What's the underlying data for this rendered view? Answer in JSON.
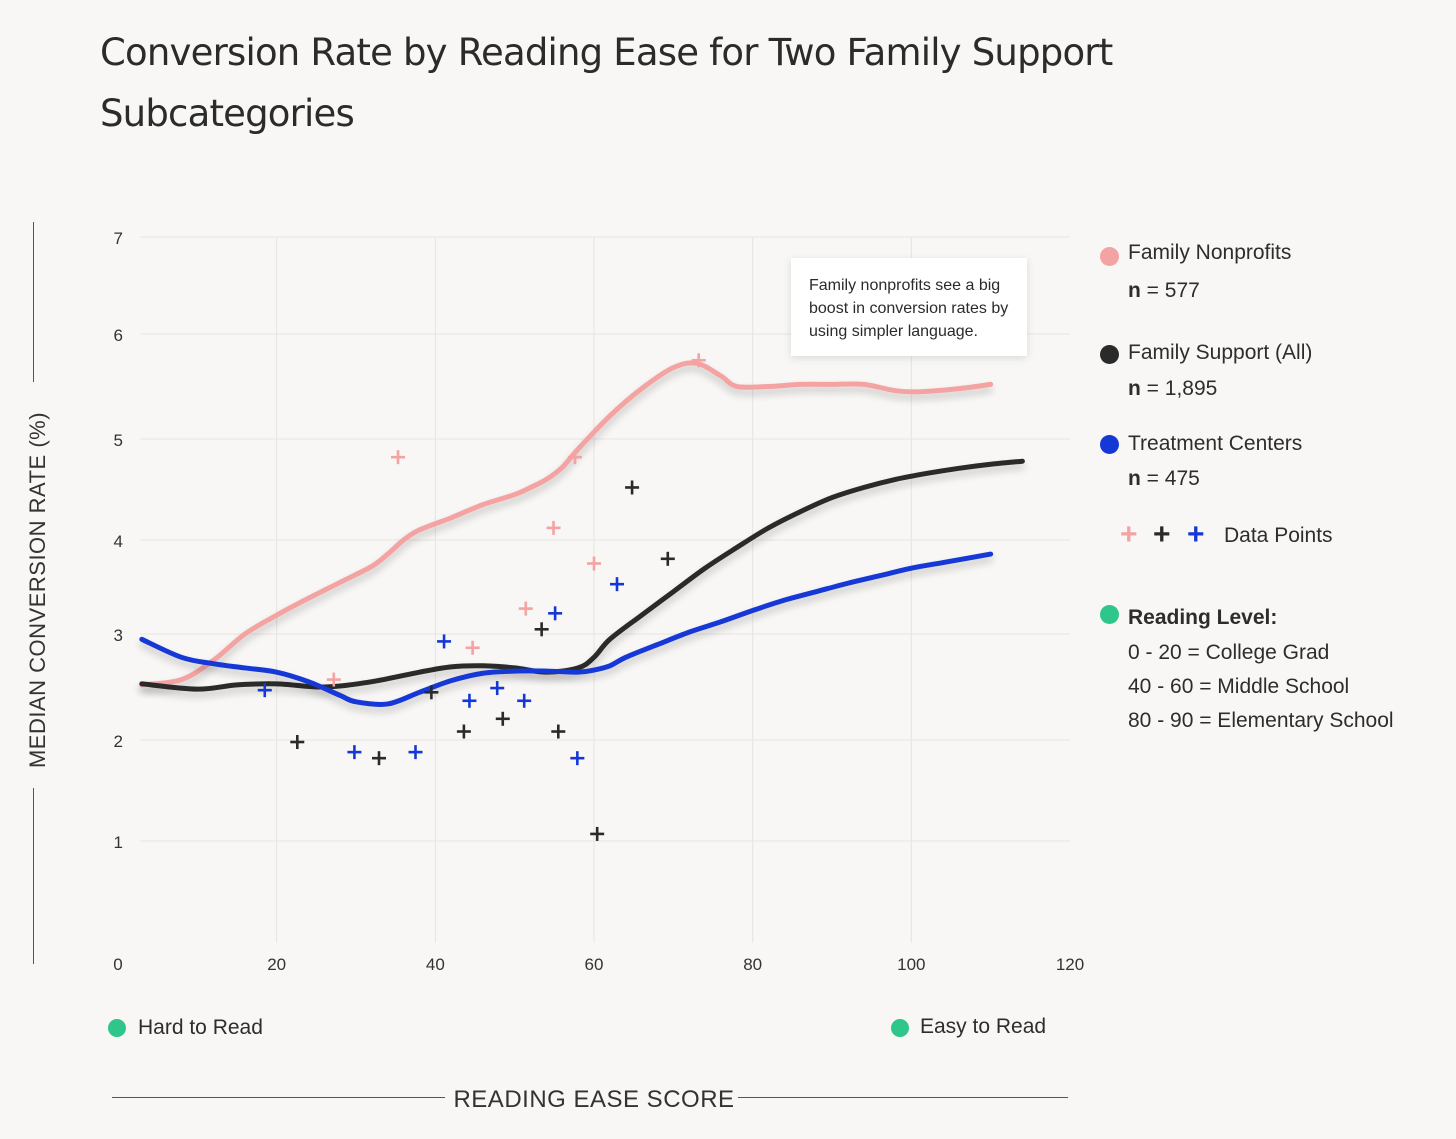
{
  "title": "Conversion Rate by Reading Ease for Two Family Support Subcategories",
  "colors": {
    "family_nonprofits": "#f4a3a3",
    "family_support_all": "#2a2a2a",
    "treatment_centers": "#1437d6",
    "reading_level": "#2ec68a",
    "grid": "#e6e4e0",
    "background": "#f8f7f5"
  },
  "callout": "Family nonprofits see a big boost in conversion rates by using simpler language.",
  "legend": {
    "items": [
      {
        "label": "Family Nonprofits",
        "n_prefix": "n",
        "n_value": "= 577"
      },
      {
        "label": "Family Support (All)",
        "n_prefix": "n",
        "n_value": "= 1,895"
      },
      {
        "label": "Treatment Centers",
        "n_prefix": "n",
        "n_value": "= 475"
      }
    ],
    "data_points_label": "Data Points",
    "plus_symbol": "+",
    "reading_level": {
      "title": "Reading Level:",
      "lines": [
        "0 - 20 = College Grad",
        "40 - 60 = Middle School",
        "80 - 90 = Elementary School"
      ]
    }
  },
  "bottom": {
    "left_label": "Hard to Read",
    "right_label": "Easy to Read"
  },
  "chart_data": {
    "type": "line",
    "xlabel": "READING EASE SCORE",
    "ylabel": "MEDIAN CONVERSION RATE (%)",
    "xlim": [
      0,
      120
    ],
    "ylim": [
      0,
      7
    ],
    "x_ticks": [
      0,
      20,
      40,
      60,
      80,
      100,
      120
    ],
    "y_ticks": [
      1,
      2,
      3,
      4,
      5,
      6,
      7
    ],
    "grid": true,
    "legend_position": "right",
    "series": [
      {
        "name": "Family Nonprofits",
        "color_key": "family_nonprofits",
        "line": [
          [
            3,
            2.52
          ],
          [
            8,
            2.57
          ],
          [
            12,
            2.75
          ],
          [
            16,
            3.0
          ],
          [
            20,
            3.2
          ],
          [
            24,
            3.38
          ],
          [
            28,
            3.55
          ],
          [
            32,
            3.72
          ],
          [
            34,
            3.85
          ],
          [
            36,
            4.0
          ],
          [
            38,
            4.1
          ],
          [
            42,
            4.22
          ],
          [
            46,
            4.35
          ],
          [
            50,
            4.45
          ],
          [
            52,
            4.52
          ],
          [
            54,
            4.6
          ],
          [
            56,
            4.72
          ],
          [
            58,
            4.9
          ],
          [
            62,
            5.22
          ],
          [
            66,
            5.48
          ],
          [
            70,
            5.68
          ],
          [
            73,
            5.72
          ],
          [
            76,
            5.6
          ],
          [
            78,
            5.5
          ],
          [
            82,
            5.5
          ],
          [
            86,
            5.52
          ],
          [
            90,
            5.52
          ],
          [
            94,
            5.52
          ],
          [
            98,
            5.46
          ],
          [
            101,
            5.45
          ],
          [
            106,
            5.48
          ],
          [
            110,
            5.52
          ]
        ],
        "points": [
          [
            35.3,
            4.82
          ],
          [
            54.9,
            4.12
          ],
          [
            57.6,
            4.82
          ],
          [
            60.0,
            3.75
          ],
          [
            51.4,
            3.27
          ],
          [
            27.2,
            2.57
          ],
          [
            44.7,
            2.87
          ],
          [
            73.2,
            5.75
          ]
        ]
      },
      {
        "name": "Family Support (All)",
        "color_key": "family_support_all",
        "line": [
          [
            3,
            2.53
          ],
          [
            10,
            2.48
          ],
          [
            15,
            2.52
          ],
          [
            20,
            2.53
          ],
          [
            26,
            2.5
          ],
          [
            32,
            2.55
          ],
          [
            38,
            2.64
          ],
          [
            42,
            2.69
          ],
          [
            46,
            2.7
          ],
          [
            50,
            2.68
          ],
          [
            54,
            2.64
          ],
          [
            58,
            2.68
          ],
          [
            60,
            2.78
          ],
          [
            62,
            2.95
          ],
          [
            66,
            3.2
          ],
          [
            70,
            3.45
          ],
          [
            74,
            3.7
          ],
          [
            78,
            3.92
          ],
          [
            82,
            4.12
          ],
          [
            86,
            4.28
          ],
          [
            90,
            4.42
          ],
          [
            94,
            4.52
          ],
          [
            98,
            4.6
          ],
          [
            102,
            4.66
          ],
          [
            106,
            4.71
          ],
          [
            110,
            4.75
          ],
          [
            114,
            4.78
          ]
        ],
        "points": [
          [
            64.8,
            4.52
          ],
          [
            69.3,
            3.8
          ],
          [
            53.4,
            3.05
          ],
          [
            39.5,
            2.45
          ],
          [
            48.5,
            2.2
          ],
          [
            43.6,
            2.08
          ],
          [
            55.5,
            2.08
          ],
          [
            22.6,
            1.98
          ],
          [
            32.9,
            1.82
          ],
          [
            60.4,
            1.07
          ]
        ]
      },
      {
        "name": "Treatment Centers",
        "color_key": "treatment_centers",
        "line": [
          [
            3,
            2.95
          ],
          [
            8,
            2.78
          ],
          [
            12,
            2.72
          ],
          [
            16,
            2.68
          ],
          [
            20,
            2.64
          ],
          [
            24,
            2.55
          ],
          [
            28,
            2.42
          ],
          [
            30,
            2.36
          ],
          [
            34,
            2.34
          ],
          [
            38,
            2.45
          ],
          [
            42,
            2.56
          ],
          [
            46,
            2.63
          ],
          [
            50,
            2.65
          ],
          [
            54,
            2.65
          ],
          [
            58,
            2.64
          ],
          [
            60,
            2.66
          ],
          [
            62,
            2.7
          ],
          [
            64,
            2.78
          ],
          [
            68,
            2.9
          ],
          [
            72,
            3.02
          ],
          [
            76,
            3.13
          ],
          [
            80,
            3.25
          ],
          [
            84,
            3.36
          ],
          [
            88,
            3.45
          ],
          [
            92,
            3.54
          ],
          [
            96,
            3.62
          ],
          [
            100,
            3.7
          ],
          [
            104,
            3.76
          ],
          [
            110,
            3.85
          ]
        ],
        "points": [
          [
            62.9,
            3.53
          ],
          [
            55.1,
            3.22
          ],
          [
            41.1,
            2.93
          ],
          [
            18.5,
            2.47
          ],
          [
            47.8,
            2.49
          ],
          [
            44.3,
            2.37
          ],
          [
            51.2,
            2.37
          ],
          [
            29.8,
            1.88
          ],
          [
            37.5,
            1.88
          ],
          [
            57.9,
            1.82
          ]
        ]
      }
    ]
  }
}
